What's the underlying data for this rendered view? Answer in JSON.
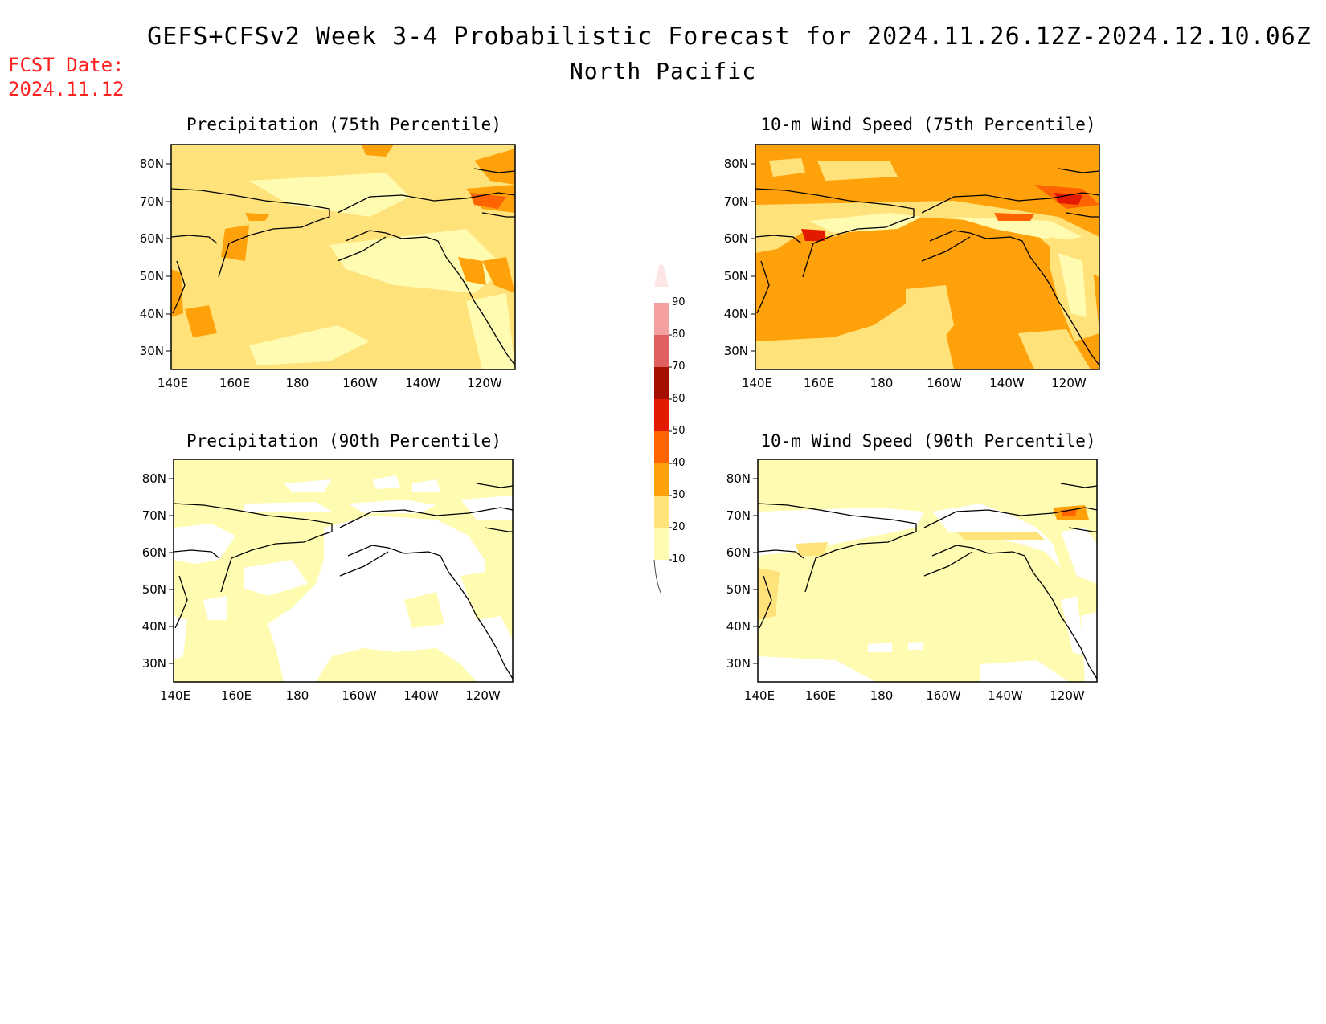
{
  "header": {
    "title": "GEFS+CFSv2 Week 3-4 Probabilistic Forecast for 2024.11.26.12Z-2024.12.10.06Z",
    "region": "North Pacific",
    "fcst_label": "FCST Date:",
    "fcst_date": "2024.11.12"
  },
  "maps": [
    {
      "title": "Precipitation (75th Percentile)",
      "background": "#ffe27a",
      "variable": "precip75"
    },
    {
      "title": "10-m Wind Speed (75th Percentile)",
      "background": "#ffa10a",
      "variable": "wind75"
    },
    {
      "title": "Precipitation (90th Percentile)",
      "background": "#fffbb0",
      "variable": "precip90"
    },
    {
      "title": "10-m Wind Speed (90th Percentile)",
      "background": "#fffbb0",
      "variable": "wind90"
    }
  ],
  "axes": {
    "lat_labels": [
      "80N",
      "70N",
      "60N",
      "50N",
      "40N",
      "30N"
    ],
    "lon_labels": [
      "140E",
      "160E",
      "180",
      "160W",
      "140W",
      "120W"
    ]
  },
  "colorbar": {
    "levels": [
      "10",
      "20",
      "30",
      "40",
      "50",
      "60",
      "70",
      "80",
      "90"
    ],
    "colors": [
      "#fffbb0",
      "#ffe27a",
      "#ffa10a",
      "#ff6400",
      "#e31a00",
      "#a50f00",
      "#e06060",
      "#f4a0a0",
      "#ffe6e6"
    ]
  }
}
